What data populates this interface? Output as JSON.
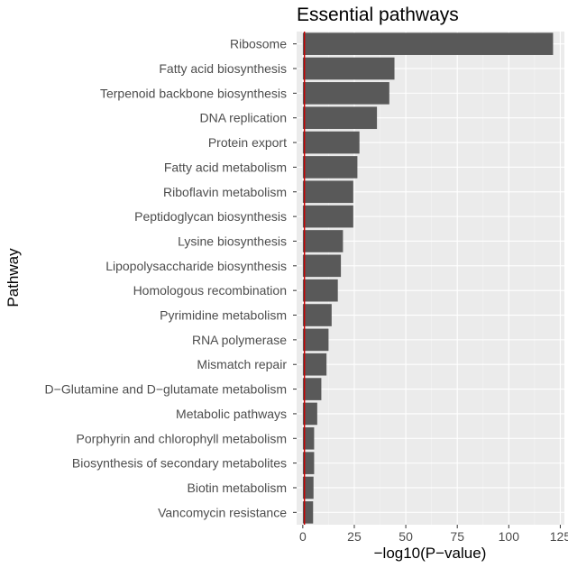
{
  "chart_data": {
    "type": "bar",
    "orientation": "horizontal",
    "title": "Essential pathways",
    "xlabel": "−log10(P−value)",
    "ylabel": "Pathway",
    "xlim": [
      -3,
      127
    ],
    "xticks": [
      0,
      25,
      50,
      75,
      100,
      125
    ],
    "grid": true,
    "reference_line": {
      "x": 0.8,
      "color": "#cc0000"
    },
    "bar_color": "#595959",
    "categories": [
      "Ribosome",
      "Fatty acid biosynthesis",
      "Terpenoid backbone biosynthesis",
      "DNA replication",
      "Protein export",
      "Fatty acid metabolism",
      "Riboflavin metabolism",
      "Peptidoglycan biosynthesis",
      "Lysine biosynthesis",
      "Lipopolysaccharide biosynthesis",
      "Homologous recombination",
      "Pyrimidine metabolism",
      "RNA polymerase",
      "Mismatch repair",
      "D−Glutamine and D−glutamate metabolism",
      "Metabolic pathways",
      "Porphyrin and chlorophyll metabolism",
      "Biosynthesis of secondary metabolites",
      "Biotin metabolism",
      "Vancomycin resistance"
    ],
    "values": [
      121.5,
      44.5,
      42,
      36,
      27.5,
      26.5,
      24.5,
      24.5,
      19.5,
      18.5,
      17,
      14,
      12.5,
      11.5,
      9,
      7,
      5.5,
      5.5,
      5.2,
      5
    ]
  }
}
